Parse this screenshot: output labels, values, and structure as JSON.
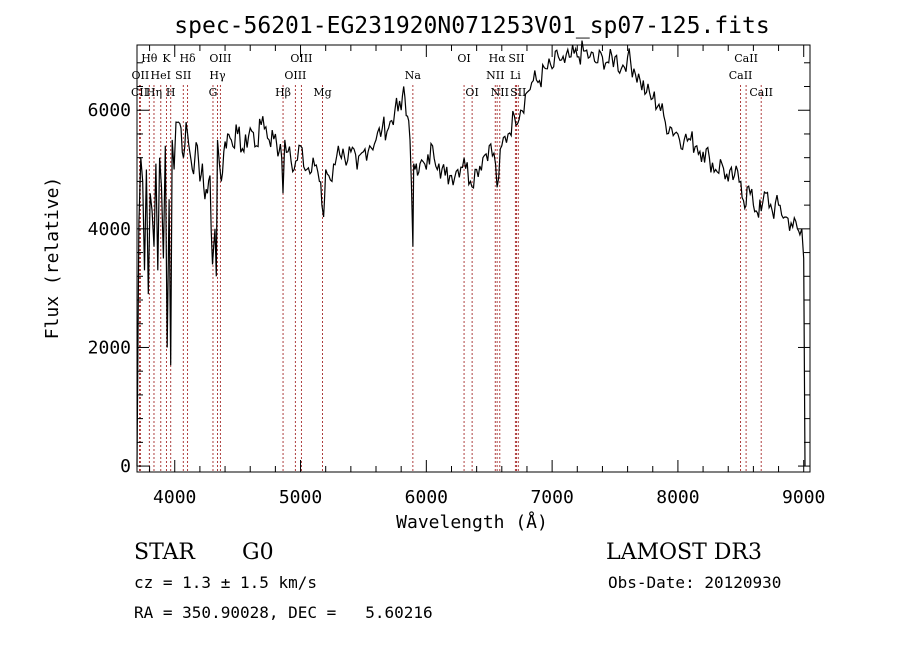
{
  "chart_data": {
    "type": "line",
    "title": "spec-56201-EG231920N071253V01_sp07-125.fits",
    "xlabel": "Wavelength (Å)",
    "ylabel": "Flux (relative)",
    "xlim": [
      3700,
      9050
    ],
    "ylim": [
      -100,
      7100
    ],
    "x_ticks": [
      4000,
      5000,
      6000,
      7000,
      8000,
      9000
    ],
    "y_ticks": [
      0,
      2000,
      4000,
      6000
    ],
    "grid": false,
    "series": [
      {
        "name": "flux",
        "x": [
          3700,
          3715,
          3730,
          3745,
          3760,
          3775,
          3790,
          3805,
          3820,
          3835,
          3850,
          3865,
          3880,
          3895,
          3910,
          3925,
          3940,
          3955,
          3968,
          3980,
          3995,
          4010,
          4030,
          4050,
          4070,
          4090,
          4102,
          4120,
          4140,
          4160,
          4180,
          4200,
          4220,
          4240,
          4260,
          4280,
          4300,
          4320,
          4330,
          4340,
          4355,
          4370,
          4390,
          4420,
          4450,
          4500,
          4550,
          4600,
          4650,
          4700,
          4750,
          4800,
          4830,
          4850,
          4861,
          4875,
          4900,
          4950,
          5000,
          5050,
          5100,
          5150,
          5170,
          5183,
          5200,
          5250,
          5300,
          5350,
          5400,
          5450,
          5500,
          5550,
          5600,
          5650,
          5700,
          5750,
          5800,
          5820,
          5850,
          5870,
          5893,
          5900,
          5920,
          5950,
          6000,
          6050,
          6100,
          6150,
          6200,
          6250,
          6300,
          6350,
          6400,
          6450,
          6500,
          6550,
          6563,
          6600,
          6650,
          6700,
          6750,
          6800,
          6850,
          6900,
          6950,
          7000,
          7050,
          7100,
          7150,
          7200,
          7250,
          7300,
          7350,
          7400,
          7450,
          7500,
          7550,
          7600,
          7650,
          7700,
          7750,
          7800,
          7850,
          7900,
          7950,
          8000,
          8050,
          8100,
          8150,
          8200,
          8250,
          8300,
          8350,
          8400,
          8450,
          8500,
          8542,
          8550,
          8600,
          8662,
          8700,
          8750,
          8800,
          8850,
          8900,
          8950,
          8970,
          8985,
          9000,
          9010
        ],
        "y": [
          0,
          4100,
          5200,
          4800,
          3300,
          5000,
          2900,
          4600,
          4300,
          3700,
          5100,
          3300,
          5200,
          4700,
          3500,
          5400,
          2000,
          4500,
          1700,
          5500,
          5000,
          5800,
          5800,
          5700,
          5200,
          5800,
          5600,
          5300,
          5000,
          5200,
          5400,
          4800,
          5100,
          4500,
          4600,
          4900,
          3400,
          4000,
          3200,
          5500,
          5100,
          4800,
          5300,
          5600,
          5500,
          5600,
          5300,
          5700,
          5400,
          5900,
          5500,
          5600,
          5300,
          5200,
          4600,
          5500,
          5300,
          5000,
          5400,
          5000,
          5200,
          4800,
          4400,
          4200,
          5000,
          4800,
          5400,
          5200,
          5300,
          5000,
          5300,
          5400,
          5500,
          5700,
          5700,
          6000,
          6000,
          6400,
          5900,
          5500,
          3700,
          5100,
          5100,
          5100,
          5000,
          5400,
          5100,
          4900,
          4900,
          5000,
          5200,
          4800,
          5000,
          5200,
          5400,
          5100,
          4700,
          5400,
          5600,
          5900,
          6000,
          6300,
          6500,
          6500,
          6700,
          6700,
          6900,
          6800,
          6900,
          6900,
          7000,
          6900,
          6800,
          6900,
          6800,
          6900,
          6700,
          6900,
          6700,
          6500,
          6300,
          6200,
          6100,
          5800,
          5700,
          5600,
          5500,
          5500,
          5400,
          5300,
          5200,
          5000,
          5100,
          4800,
          4900,
          4800,
          4400,
          4700,
          4400,
          4300,
          4600,
          4300,
          4400,
          4200,
          4100,
          4000,
          3900,
          4000,
          3500,
          0
        ]
      }
    ],
    "line_markers": [
      {
        "label": "Hθ",
        "wavelength": 3798,
        "row": 1
      },
      {
        "label": "OII",
        "wavelength": 3727,
        "row": 2
      },
      {
        "label": "CII",
        "wavelength": 3720,
        "row": 3
      },
      {
        "label": "Hη",
        "wavelength": 3835,
        "row": 3
      },
      {
        "label": "HeI",
        "wavelength": 3889,
        "row": 2
      },
      {
        "label": "K",
        "wavelength": 3934,
        "row": 1
      },
      {
        "label": "H",
        "wavelength": 3968,
        "row": 3
      },
      {
        "label": "SII",
        "wavelength": 4068,
        "row": 2
      },
      {
        "label": "Hδ",
        "wavelength": 4102,
        "row": 1
      },
      {
        "label": "OIII",
        "wavelength": 4363,
        "row": 1
      },
      {
        "label": "Hγ",
        "wavelength": 4340,
        "row": 2
      },
      {
        "label": "G",
        "wavelength": 4304,
        "row": 3
      },
      {
        "label": "Hβ",
        "wavelength": 4861,
        "row": 3
      },
      {
        "label": "OIII",
        "wavelength": 5007,
        "row": 1
      },
      {
        "label": "OIII",
        "wavelength": 4959,
        "row": 2
      },
      {
        "label": "Mg",
        "wavelength": 5175,
        "row": 3
      },
      {
        "label": "Na",
        "wavelength": 5893,
        "row": 2
      },
      {
        "label": "OI",
        "wavelength": 6300,
        "row": 1
      },
      {
        "label": "OI",
        "wavelength": 6364,
        "row": 3
      },
      {
        "label": "Hα",
        "wavelength": 6563,
        "row": 1
      },
      {
        "label": "NII",
        "wavelength": 6548,
        "row": 2
      },
      {
        "label": "NII",
        "wavelength": 6584,
        "row": 3
      },
      {
        "label": "SII",
        "wavelength": 6717,
        "row": 1
      },
      {
        "label": "Li",
        "wavelength": 6708,
        "row": 2
      },
      {
        "label": "SII",
        "wavelength": 6731,
        "row": 3
      },
      {
        "label": "CaII",
        "wavelength": 8542,
        "row": 1
      },
      {
        "label": "CaII",
        "wavelength": 8498,
        "row": 2
      },
      {
        "label": "CaII",
        "wavelength": 8662,
        "row": 3
      }
    ]
  },
  "info": {
    "class": "STAR",
    "subclass": "G0",
    "survey": "LAMOST DR3",
    "cz": "cz = 1.3 ± 1.5 km/s",
    "obs_date": "Obs-Date: 20120930",
    "coords": "RA = 350.90028, DEC =   5.60216"
  },
  "colors": {
    "spectrum": "#000000",
    "marker_line": "#a52a2a",
    "axes": "#000000",
    "background": "#ffffff"
  }
}
